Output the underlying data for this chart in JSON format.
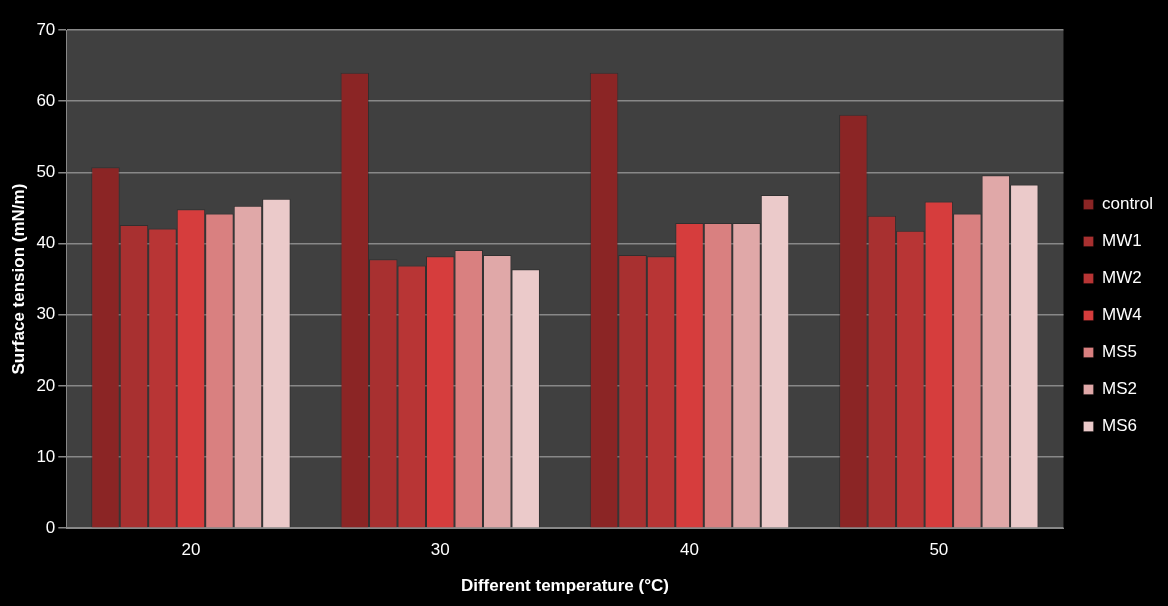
{
  "chart_data": {
    "type": "bar",
    "xlabel": "Different temperature (°C)",
    "ylabel": "Surface tension (mN/m)",
    "categories": [
      "20",
      "30",
      "40",
      "50"
    ],
    "series": [
      {
        "name": "control",
        "color": "#8b2525",
        "values": [
          50.7,
          64,
          64,
          58.1
        ]
      },
      {
        "name": "MW1",
        "color": "#a83030",
        "values": [
          42.6,
          37.8,
          38.4,
          43.9
        ]
      },
      {
        "name": "MW2",
        "color": "#b83535",
        "values": [
          42.1,
          36.9,
          38.2,
          41.8
        ]
      },
      {
        "name": "MW4",
        "color": "#d63d3d",
        "values": [
          44.8,
          38.2,
          42.9,
          45.9
        ]
      },
      {
        "name": "MS5",
        "color": "#d98080",
        "values": [
          44.2,
          39.1,
          42.9,
          44.2
        ]
      },
      {
        "name": "MS2",
        "color": "#e0a8a8",
        "values": [
          45.3,
          38.4,
          42.9,
          49.6
        ]
      },
      {
        "name": "MS6",
        "color": "#ebcaca",
        "values": [
          46.3,
          36.4,
          46.8,
          48.3
        ]
      }
    ],
    "ylim": [
      0,
      70
    ],
    "yticks": [
      0,
      10,
      20,
      30,
      40,
      50,
      60,
      70
    ],
    "grid": "y",
    "legend": "right"
  }
}
